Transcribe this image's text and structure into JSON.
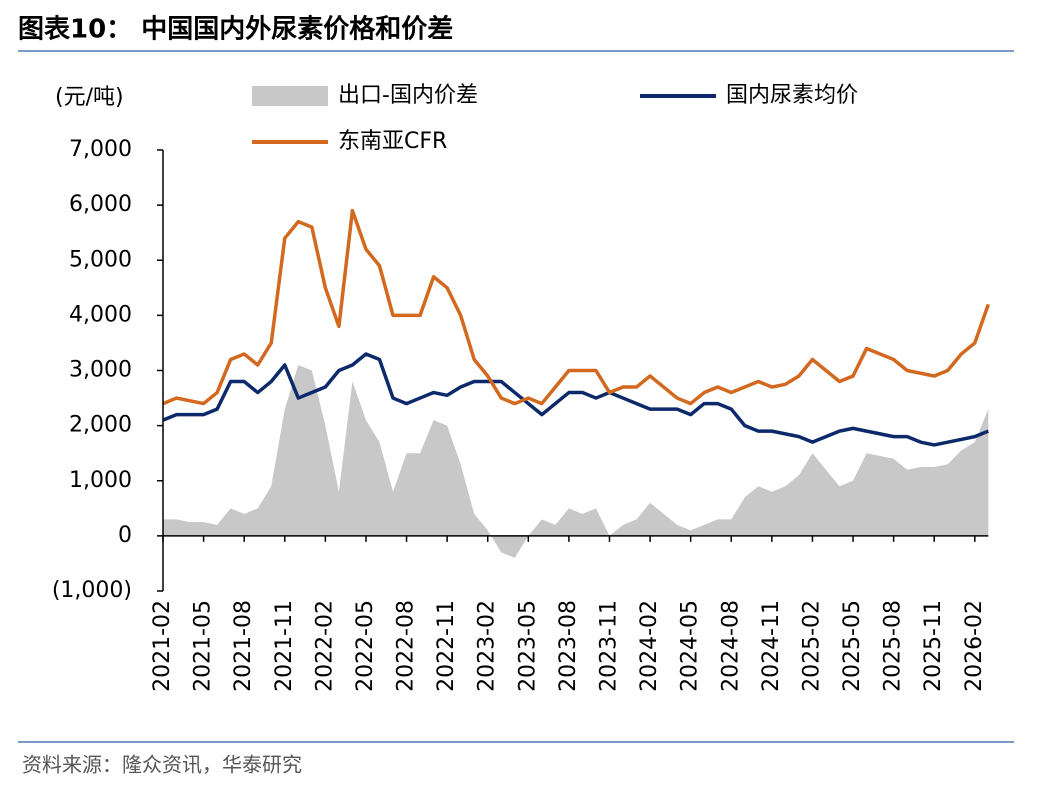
{
  "chart_data": {
    "type": "line",
    "title": "图表10：  中国国内外尿素价格和价差",
    "source": "资料来源：隆众资讯，华泰研究",
    "y_label": "(元/吨)",
    "ylim": [
      -1000,
      7000
    ],
    "yticks": [
      {
        "value": -1000,
        "label": "(1,000)"
      },
      0,
      {
        "value": 1000,
        "label": "1,000"
      },
      {
        "value": 2000,
        "label": "2,000"
      },
      {
        "value": 3000,
        "label": "3,000"
      },
      {
        "value": 4000,
        "label": "4,000"
      },
      {
        "value": 5000,
        "label": "5,000"
      },
      {
        "value": 6000,
        "label": "6,000"
      },
      {
        "value": 7000,
        "label": "7,000"
      }
    ],
    "categories": [
      "2021-02",
      null,
      null,
      "2021-05",
      null,
      null,
      "2021-08",
      null,
      null,
      "2021-11",
      null,
      null,
      "2022-02",
      null,
      null,
      "2022-05",
      null,
      null,
      "2022-08",
      null,
      null,
      "2022-11",
      null,
      null,
      "2023-02",
      null,
      null,
      "2023-05",
      null,
      null,
      "2023-08",
      null,
      null,
      "2023-11",
      null,
      null,
      "2024-02",
      null,
      null,
      "2024-05",
      null,
      null,
      "2024-08",
      null,
      null,
      "2024-11",
      null,
      null,
      "2025-02",
      null,
      null,
      "2025-05",
      null,
      null,
      "2025-08",
      null,
      null,
      "2025-11",
      null,
      null,
      "2026-02",
      null
    ],
    "series": [
      {
        "name": "出口-国内价差",
        "type": "area",
        "color": "#c8c8c8",
        "values": [
          300,
          300,
          250,
          250,
          200,
          500,
          400,
          500,
          900,
          2300,
          3100,
          3000,
          2000,
          800,
          2800,
          2100,
          1700,
          800,
          1500,
          1500,
          2100,
          2000,
          1300,
          400,
          100,
          -300,
          -400,
          0,
          300,
          200,
          500,
          400,
          500,
          0,
          200,
          300,
          600,
          400,
          200,
          100,
          200,
          300,
          300,
          700,
          900,
          800,
          900,
          1100,
          1500,
          1200,
          900,
          1000,
          1500,
          1450,
          1400,
          1200,
          1250,
          1250,
          1300,
          1550,
          1700,
          2300
        ]
      },
      {
        "name": "国内尿素均价",
        "type": "line",
        "color": "#0c2a6b",
        "values": [
          2100,
          2200,
          2200,
          2200,
          2300,
          2800,
          2800,
          2600,
          2800,
          3100,
          2500,
          2600,
          2700,
          3000,
          3100,
          3300,
          3200,
          2500,
          2400,
          2500,
          2600,
          2550,
          2700,
          2800,
          2800,
          2800,
          2600,
          2400,
          2200,
          2400,
          2600,
          2600,
          2500,
          2600,
          2500,
          2400,
          2300,
          2300,
          2300,
          2200,
          2400,
          2400,
          2300,
          2000,
          1900,
          1900,
          1850,
          1800,
          1700,
          1800,
          1900,
          1950,
          1900,
          1850,
          1800,
          1800,
          1700,
          1650,
          1700,
          1750,
          1800,
          1900
        ]
      },
      {
        "name": "东南亚CFR",
        "type": "line",
        "color": "#d2691e",
        "values": [
          2400,
          2500,
          2450,
          2400,
          2600,
          3200,
          3300,
          3100,
          3500,
          5400,
          5700,
          5600,
          4500,
          3800,
          5900,
          5200,
          4900,
          4000,
          4000,
          4000,
          4700,
          4500,
          4000,
          3200,
          2900,
          2500,
          2400,
          2500,
          2400,
          2700,
          3000,
          3000,
          3000,
          2600,
          2700,
          2700,
          2900,
          2700,
          2500,
          2400,
          2600,
          2700,
          2600,
          2700,
          2800,
          2700,
          2750,
          2900,
          3200,
          3000,
          2800,
          2900,
          3400,
          3300,
          3200,
          3000,
          2950,
          2900,
          3000,
          3300,
          3500,
          4200
        ]
      }
    ]
  }
}
